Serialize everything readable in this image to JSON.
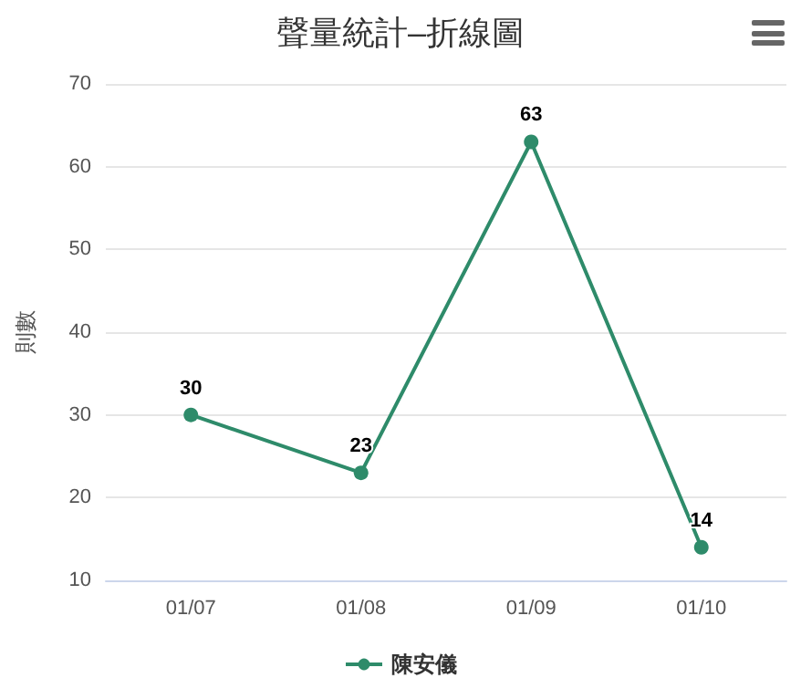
{
  "chart_data": {
    "type": "line",
    "title": "聲量統計–折線圖",
    "ylabel": "則數",
    "categories": [
      "01/07",
      "01/08",
      "01/09",
      "01/10"
    ],
    "series": [
      {
        "name": "陳安儀",
        "color": "#2e8b6a",
        "values": [
          30,
          23,
          63,
          14
        ]
      }
    ],
    "ylim": [
      10,
      70
    ],
    "yticks": [
      10,
      20,
      30,
      40,
      50,
      60,
      70
    ],
    "grid": "y",
    "legend": "bottom",
    "data_labels": true,
    "marker": "circle",
    "line_style": "solid"
  }
}
